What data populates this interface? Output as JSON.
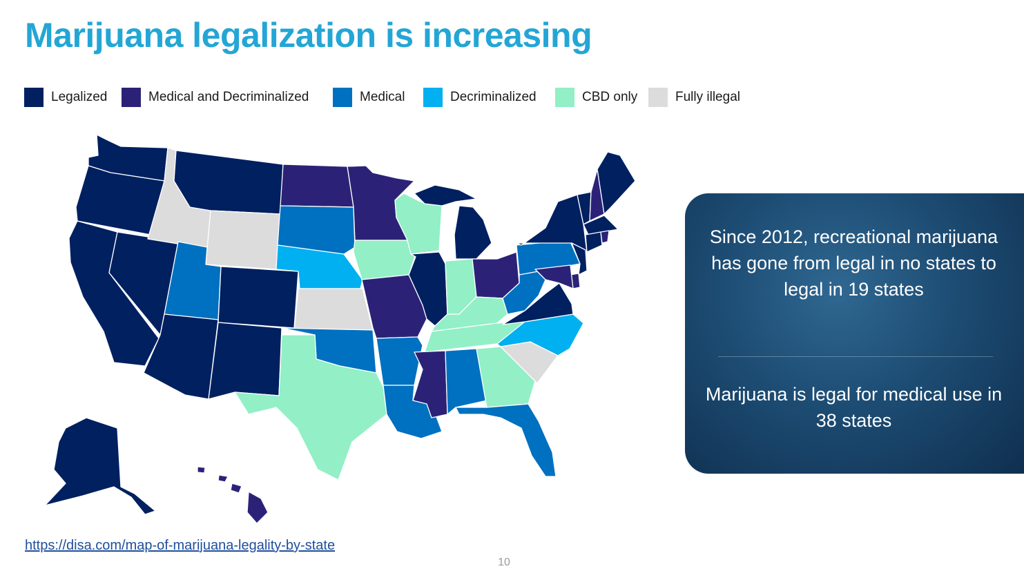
{
  "title": "Marijuana legalization is increasing",
  "colors": {
    "legalized": "#002060",
    "medical_decriminalized": "#2b2278",
    "medical": "#0070c0",
    "decriminalized": "#00b0f0",
    "cbd": "#92efc6",
    "illegal": "#dcdcdc"
  },
  "legend": [
    {
      "label": "Legalized",
      "color": "#002060"
    },
    {
      "label": "Medical and Decriminalized",
      "color": "#2b2278"
    },
    {
      "label": "Medical",
      "color": "#0070c0"
    },
    {
      "label": "Decriminalized",
      "color": "#00b0f0"
    },
    {
      "label": "CBD only",
      "color": "#92efc6"
    },
    {
      "label": "Fully illegal",
      "color": "#dcdcdc"
    }
  ],
  "info": {
    "text1": "Since 2012, recreational marijuana has gone from legal in no states to legal in 19 states",
    "text2": "Marijuana is legal for medical use in 38 states"
  },
  "source_link": "https://disa.com/map-of-marijuana-legality-by-state",
  "page_number": "10"
}
